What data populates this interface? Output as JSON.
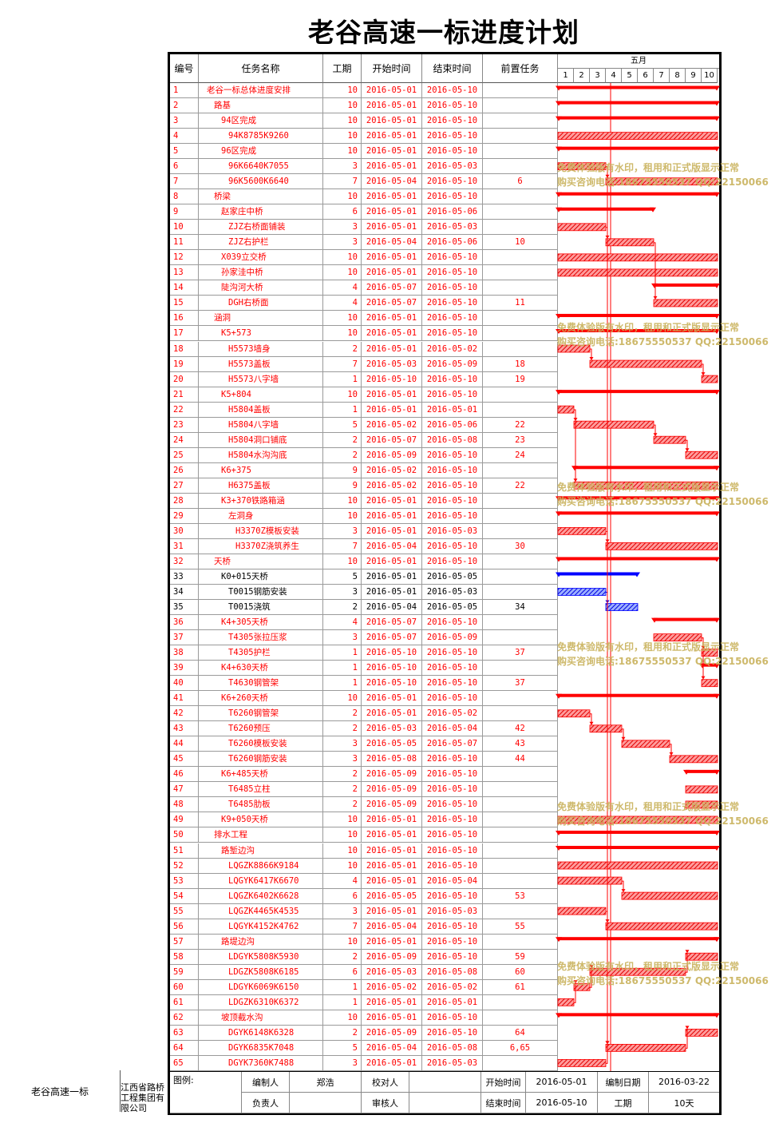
{
  "title": "老谷高速一标进度计划",
  "header": {
    "id": "编号",
    "name": "任务名称",
    "duration": "工期",
    "start": "开始时间",
    "end": "结束时间",
    "predecessors": "前置任务",
    "month": "五月",
    "days": [
      "1",
      "2",
      "3",
      "4",
      "5",
      "6",
      "7",
      "8",
      "9",
      "10"
    ]
  },
  "colors": {
    "critical": "#ff0000",
    "normal": "#0000ff",
    "hatch": "#e04040",
    "watermark": "#c9b25c"
  },
  "tasks": [
    {
      "id": "1",
      "name": "老谷一标总体进度安排",
      "level": 0,
      "dur": "10",
      "start": "2016-05-01",
      "end": "2016-05-10",
      "pred": "",
      "s": 1,
      "e": 10,
      "summary": true,
      "blue": false
    },
    {
      "id": "2",
      "name": "路基",
      "level": 1,
      "dur": "10",
      "start": "2016-05-01",
      "end": "2016-05-10",
      "pred": "",
      "s": 1,
      "e": 10,
      "summary": true,
      "blue": false
    },
    {
      "id": "3",
      "name": "94区完成",
      "level": 2,
      "dur": "10",
      "start": "2016-05-01",
      "end": "2016-05-10",
      "pred": "",
      "s": 1,
      "e": 10,
      "summary": true,
      "blue": false
    },
    {
      "id": "4",
      "name": "94K8785K9260",
      "level": 3,
      "dur": "10",
      "start": "2016-05-01",
      "end": "2016-05-10",
      "pred": "",
      "s": 1,
      "e": 10,
      "summary": false,
      "blue": false
    },
    {
      "id": "5",
      "name": "96区完成",
      "level": 2,
      "dur": "10",
      "start": "2016-05-01",
      "end": "2016-05-10",
      "pred": "",
      "s": 1,
      "e": 10,
      "summary": true,
      "blue": false
    },
    {
      "id": "6",
      "name": "96K6640K7055",
      "level": 3,
      "dur": "3",
      "start": "2016-05-01",
      "end": "2016-05-03",
      "pred": "",
      "s": 1,
      "e": 3,
      "summary": false,
      "blue": false
    },
    {
      "id": "7",
      "name": "96K5600K6640",
      "level": 3,
      "dur": "7",
      "start": "2016-05-04",
      "end": "2016-05-10",
      "pred": "6",
      "s": 4,
      "e": 10,
      "summary": false,
      "blue": false
    },
    {
      "id": "8",
      "name": "桥梁",
      "level": 1,
      "dur": "10",
      "start": "2016-05-01",
      "end": "2016-05-10",
      "pred": "",
      "s": 1,
      "e": 10,
      "summary": true,
      "blue": false
    },
    {
      "id": "9",
      "name": "赵家庄中桥",
      "level": 2,
      "dur": "6",
      "start": "2016-05-01",
      "end": "2016-05-06",
      "pred": "",
      "s": 1,
      "e": 6,
      "summary": true,
      "blue": false
    },
    {
      "id": "10",
      "name": "ZJZ右桥面铺装",
      "level": 3,
      "dur": "3",
      "start": "2016-05-01",
      "end": "2016-05-03",
      "pred": "",
      "s": 1,
      "e": 3,
      "summary": false,
      "blue": false
    },
    {
      "id": "11",
      "name": "ZJZ右护栏",
      "level": 3,
      "dur": "3",
      "start": "2016-05-04",
      "end": "2016-05-06",
      "pred": "10",
      "s": 4,
      "e": 6,
      "summary": false,
      "blue": false
    },
    {
      "id": "12",
      "name": "X039立交桥",
      "level": 2,
      "dur": "10",
      "start": "2016-05-01",
      "end": "2016-05-10",
      "pred": "",
      "s": 1,
      "e": 10,
      "summary": false,
      "blue": false
    },
    {
      "id": "13",
      "name": "孙家洼中桥",
      "level": 2,
      "dur": "10",
      "start": "2016-05-01",
      "end": "2016-05-10",
      "pred": "",
      "s": 1,
      "e": 10,
      "summary": false,
      "blue": false
    },
    {
      "id": "14",
      "name": "陡沟河大桥",
      "level": 2,
      "dur": "4",
      "start": "2016-05-07",
      "end": "2016-05-10",
      "pred": "",
      "s": 7,
      "e": 10,
      "summary": true,
      "blue": false
    },
    {
      "id": "15",
      "name": "DGH右桥面",
      "level": 3,
      "dur": "4",
      "start": "2016-05-07",
      "end": "2016-05-10",
      "pred": "11",
      "s": 7,
      "e": 10,
      "summary": false,
      "blue": false
    },
    {
      "id": "16",
      "name": "涵洞",
      "level": 1,
      "dur": "10",
      "start": "2016-05-01",
      "end": "2016-05-10",
      "pred": "",
      "s": 1,
      "e": 10,
      "summary": true,
      "blue": false
    },
    {
      "id": "17",
      "name": "K5+573",
      "level": 2,
      "dur": "10",
      "start": "2016-05-01",
      "end": "2016-05-10",
      "pred": "",
      "s": 1,
      "e": 10,
      "summary": true,
      "blue": false
    },
    {
      "id": "18",
      "name": "H5573墙身",
      "level": 3,
      "dur": "2",
      "start": "2016-05-01",
      "end": "2016-05-02",
      "pred": "",
      "s": 1,
      "e": 2,
      "summary": false,
      "blue": false
    },
    {
      "id": "19",
      "name": "H5573盖板",
      "level": 3,
      "dur": "7",
      "start": "2016-05-03",
      "end": "2016-05-09",
      "pred": "18",
      "s": 3,
      "e": 9,
      "summary": false,
      "blue": false
    },
    {
      "id": "20",
      "name": "H5573八字墙",
      "level": 3,
      "dur": "1",
      "start": "2016-05-10",
      "end": "2016-05-10",
      "pred": "19",
      "s": 10,
      "e": 10,
      "summary": false,
      "blue": false
    },
    {
      "id": "21",
      "name": "K5+804",
      "level": 2,
      "dur": "10",
      "start": "2016-05-01",
      "end": "2016-05-10",
      "pred": "",
      "s": 1,
      "e": 10,
      "summary": true,
      "blue": false
    },
    {
      "id": "22",
      "name": "H5804盖板",
      "level": 3,
      "dur": "1",
      "start": "2016-05-01",
      "end": "2016-05-01",
      "pred": "",
      "s": 1,
      "e": 1,
      "summary": false,
      "blue": false
    },
    {
      "id": "23",
      "name": "H5804八字墙",
      "level": 3,
      "dur": "5",
      "start": "2016-05-02",
      "end": "2016-05-06",
      "pred": "22",
      "s": 2,
      "e": 6,
      "summary": false,
      "blue": false
    },
    {
      "id": "24",
      "name": "H5804洞口铺底",
      "level": 3,
      "dur": "2",
      "start": "2016-05-07",
      "end": "2016-05-08",
      "pred": "23",
      "s": 7,
      "e": 8,
      "summary": false,
      "blue": false
    },
    {
      "id": "25",
      "name": "H5804水沟沟底",
      "level": 3,
      "dur": "2",
      "start": "2016-05-09",
      "end": "2016-05-10",
      "pred": "24",
      "s": 9,
      "e": 10,
      "summary": false,
      "blue": false
    },
    {
      "id": "26",
      "name": "K6+375",
      "level": 2,
      "dur": "9",
      "start": "2016-05-02",
      "end": "2016-05-10",
      "pred": "",
      "s": 2,
      "e": 10,
      "summary": true,
      "blue": false
    },
    {
      "id": "27",
      "name": "H6375盖板",
      "level": 3,
      "dur": "9",
      "start": "2016-05-02",
      "end": "2016-05-10",
      "pred": "22",
      "s": 2,
      "e": 10,
      "summary": false,
      "blue": false
    },
    {
      "id": "28",
      "name": "K3+370铁路箱涵",
      "level": 2,
      "dur": "10",
      "start": "2016-05-01",
      "end": "2016-05-10",
      "pred": "",
      "s": 1,
      "e": 10,
      "summary": true,
      "blue": false
    },
    {
      "id": "29",
      "name": "左洞身",
      "level": 3,
      "dur": "10",
      "start": "2016-05-01",
      "end": "2016-05-10",
      "pred": "",
      "s": 1,
      "e": 10,
      "summary": true,
      "blue": false
    },
    {
      "id": "30",
      "name": "H3370Z模板安装",
      "level": 4,
      "dur": "3",
      "start": "2016-05-01",
      "end": "2016-05-03",
      "pred": "",
      "s": 1,
      "e": 3,
      "summary": false,
      "blue": false
    },
    {
      "id": "31",
      "name": "H3370Z浇筑养生",
      "level": 4,
      "dur": "7",
      "start": "2016-05-04",
      "end": "2016-05-10",
      "pred": "30",
      "s": 4,
      "e": 10,
      "summary": false,
      "blue": false
    },
    {
      "id": "32",
      "name": "天桥",
      "level": 1,
      "dur": "10",
      "start": "2016-05-01",
      "end": "2016-05-10",
      "pred": "",
      "s": 1,
      "e": 10,
      "summary": true,
      "blue": false
    },
    {
      "id": "33",
      "name": "K0+015天桥",
      "level": 2,
      "dur": "5",
      "start": "2016-05-01",
      "end": "2016-05-05",
      "pred": "",
      "s": 1,
      "e": 5,
      "summary": true,
      "blue": true
    },
    {
      "id": "34",
      "name": "T0015钢筋安装",
      "level": 3,
      "dur": "3",
      "start": "2016-05-01",
      "end": "2016-05-03",
      "pred": "",
      "s": 1,
      "e": 3,
      "summary": false,
      "blue": true
    },
    {
      "id": "35",
      "name": "T0015浇筑",
      "level": 3,
      "dur": "2",
      "start": "2016-05-04",
      "end": "2016-05-05",
      "pred": "34",
      "s": 4,
      "e": 5,
      "summary": false,
      "blue": true
    },
    {
      "id": "36",
      "name": "K4+305天桥",
      "level": 2,
      "dur": "4",
      "start": "2016-05-07",
      "end": "2016-05-10",
      "pred": "",
      "s": 7,
      "e": 10,
      "summary": true,
      "blue": false
    },
    {
      "id": "37",
      "name": "T4305张拉压浆",
      "level": 3,
      "dur": "3",
      "start": "2016-05-07",
      "end": "2016-05-09",
      "pred": "",
      "s": 7,
      "e": 9,
      "summary": false,
      "blue": false
    },
    {
      "id": "38",
      "name": "T4305护栏",
      "level": 3,
      "dur": "1",
      "start": "2016-05-10",
      "end": "2016-05-10",
      "pred": "37",
      "s": 10,
      "e": 10,
      "summary": false,
      "blue": false
    },
    {
      "id": "39",
      "name": "K4+630天桥",
      "level": 2,
      "dur": "1",
      "start": "2016-05-10",
      "end": "2016-05-10",
      "pred": "",
      "s": 10,
      "e": 10,
      "summary": true,
      "blue": false
    },
    {
      "id": "40",
      "name": "T4630钢管架",
      "level": 3,
      "dur": "1",
      "start": "2016-05-10",
      "end": "2016-05-10",
      "pred": "37",
      "s": 10,
      "e": 10,
      "summary": false,
      "blue": false
    },
    {
      "id": "41",
      "name": "K6+260天桥",
      "level": 2,
      "dur": "10",
      "start": "2016-05-01",
      "end": "2016-05-10",
      "pred": "",
      "s": 1,
      "e": 10,
      "summary": true,
      "blue": false
    },
    {
      "id": "42",
      "name": "T6260钢管架",
      "level": 3,
      "dur": "2",
      "start": "2016-05-01",
      "end": "2016-05-02",
      "pred": "",
      "s": 1,
      "e": 2,
      "summary": false,
      "blue": false
    },
    {
      "id": "43",
      "name": "T6260预压",
      "level": 3,
      "dur": "2",
      "start": "2016-05-03",
      "end": "2016-05-04",
      "pred": "42",
      "s": 3,
      "e": 4,
      "summary": false,
      "blue": false
    },
    {
      "id": "44",
      "name": "T6260模板安装",
      "level": 3,
      "dur": "3",
      "start": "2016-05-05",
      "end": "2016-05-07",
      "pred": "43",
      "s": 5,
      "e": 7,
      "summary": false,
      "blue": false
    },
    {
      "id": "45",
      "name": "T6260钢筋安装",
      "level": 3,
      "dur": "3",
      "start": "2016-05-08",
      "end": "2016-05-10",
      "pred": "44",
      "s": 8,
      "e": 10,
      "summary": false,
      "blue": false
    },
    {
      "id": "46",
      "name": "K6+485天桥",
      "level": 2,
      "dur": "2",
      "start": "2016-05-09",
      "end": "2016-05-10",
      "pred": "",
      "s": 9,
      "e": 10,
      "summary": true,
      "blue": false
    },
    {
      "id": "47",
      "name": "T6485立柱",
      "level": 3,
      "dur": "2",
      "start": "2016-05-09",
      "end": "2016-05-10",
      "pred": "",
      "s": 9,
      "e": 10,
      "summary": false,
      "blue": false
    },
    {
      "id": "48",
      "name": "T6485肋板",
      "level": 3,
      "dur": "2",
      "start": "2016-05-09",
      "end": "2016-05-10",
      "pred": "",
      "s": 9,
      "e": 10,
      "summary": false,
      "blue": false
    },
    {
      "id": "49",
      "name": "K9+050天桥",
      "level": 2,
      "dur": "10",
      "start": "2016-05-01",
      "end": "2016-05-10",
      "pred": "",
      "s": 1,
      "e": 10,
      "summary": false,
      "blue": false
    },
    {
      "id": "50",
      "name": "排水工程",
      "level": 1,
      "dur": "10",
      "start": "2016-05-01",
      "end": "2016-05-10",
      "pred": "",
      "s": 1,
      "e": 10,
      "summary": true,
      "blue": false
    },
    {
      "id": "51",
      "name": "路堑边沟",
      "level": 2,
      "dur": "10",
      "start": "2016-05-01",
      "end": "2016-05-10",
      "pred": "",
      "s": 1,
      "e": 10,
      "summary": true,
      "blue": false
    },
    {
      "id": "52",
      "name": "LQGZK8866K9184",
      "level": 3,
      "dur": "10",
      "start": "2016-05-01",
      "end": "2016-05-10",
      "pred": "",
      "s": 1,
      "e": 10,
      "summary": false,
      "blue": false
    },
    {
      "id": "53",
      "name": "LQGYK6417K6670",
      "level": 3,
      "dur": "4",
      "start": "2016-05-01",
      "end": "2016-05-04",
      "pred": "",
      "s": 1,
      "e": 4,
      "summary": false,
      "blue": false
    },
    {
      "id": "54",
      "name": "LQGZK6402K6628",
      "level": 3,
      "dur": "6",
      "start": "2016-05-05",
      "end": "2016-05-10",
      "pred": "53",
      "s": 5,
      "e": 10,
      "summary": false,
      "blue": false
    },
    {
      "id": "55",
      "name": "LQGZK4465K4535",
      "level": 3,
      "dur": "3",
      "start": "2016-05-01",
      "end": "2016-05-03",
      "pred": "",
      "s": 1,
      "e": 3,
      "summary": false,
      "blue": false
    },
    {
      "id": "56",
      "name": "LQGYK4152K4762",
      "level": 3,
      "dur": "7",
      "start": "2016-05-04",
      "end": "2016-05-10",
      "pred": "55",
      "s": 4,
      "e": 10,
      "summary": false,
      "blue": false
    },
    {
      "id": "57",
      "name": "路堤边沟",
      "level": 2,
      "dur": "10",
      "start": "2016-05-01",
      "end": "2016-05-10",
      "pred": "",
      "s": 1,
      "e": 10,
      "summary": true,
      "blue": false
    },
    {
      "id": "58",
      "name": "LDGYK5808K5930",
      "level": 3,
      "dur": "2",
      "start": "2016-05-09",
      "end": "2016-05-10",
      "pred": "59",
      "s": 9,
      "e": 10,
      "summary": false,
      "blue": false
    },
    {
      "id": "59",
      "name": "LDGZK5808K6185",
      "level": 3,
      "dur": "6",
      "start": "2016-05-03",
      "end": "2016-05-08",
      "pred": "60",
      "s": 3,
      "e": 8,
      "summary": false,
      "blue": false
    },
    {
      "id": "60",
      "name": "LDGYK6069K6150",
      "level": 3,
      "dur": "1",
      "start": "2016-05-02",
      "end": "2016-05-02",
      "pred": "61",
      "s": 2,
      "e": 2,
      "summary": false,
      "blue": false
    },
    {
      "id": "61",
      "name": "LDGZK6310K6372",
      "level": 3,
      "dur": "1",
      "start": "2016-05-01",
      "end": "2016-05-01",
      "pred": "",
      "s": 1,
      "e": 1,
      "summary": false,
      "blue": false
    },
    {
      "id": "62",
      "name": "坡顶截水沟",
      "level": 2,
      "dur": "10",
      "start": "2016-05-01",
      "end": "2016-05-10",
      "pred": "",
      "s": 1,
      "e": 10,
      "summary": true,
      "blue": false
    },
    {
      "id": "63",
      "name": "DGYK6148K6328",
      "level": 3,
      "dur": "2",
      "start": "2016-05-09",
      "end": "2016-05-10",
      "pred": "64",
      "s": 9,
      "e": 10,
      "summary": false,
      "blue": false
    },
    {
      "id": "64",
      "name": "DGYK6835K7048",
      "level": 3,
      "dur": "5",
      "start": "2016-05-04",
      "end": "2016-05-08",
      "pred": "6,65",
      "s": 4,
      "e": 8,
      "summary": false,
      "blue": false
    },
    {
      "id": "65",
      "name": "DGYK7360K7488",
      "level": 3,
      "dur": "3",
      "start": "2016-05-01",
      "end": "2016-05-03",
      "pred": "",
      "s": 1,
      "e": 3,
      "summary": false,
      "blue": false
    }
  ],
  "footer": {
    "legend_label": "图例:",
    "compiler_label": "编制人",
    "compiler": "郑浩",
    "checker_label": "校对人",
    "checker": "",
    "start_label": "开始时间",
    "start": "2016-05-01",
    "date_label": "编制日期",
    "date": "2016-03-22",
    "owner_label": "负责人",
    "owner": "",
    "reviewer_label": "审核人",
    "reviewer": "",
    "end_label": "结束时间",
    "end": "2016-05-10",
    "duration_label": "工期",
    "duration": "10天",
    "project": "老谷高速一标",
    "company": "江西省路桥工程集团有限公司"
  },
  "watermark": {
    "line1": "免费体验版有水印，租用和正式版显示正常",
    "line2": "购买咨询电话:18675550537 QQ:22150066"
  }
}
